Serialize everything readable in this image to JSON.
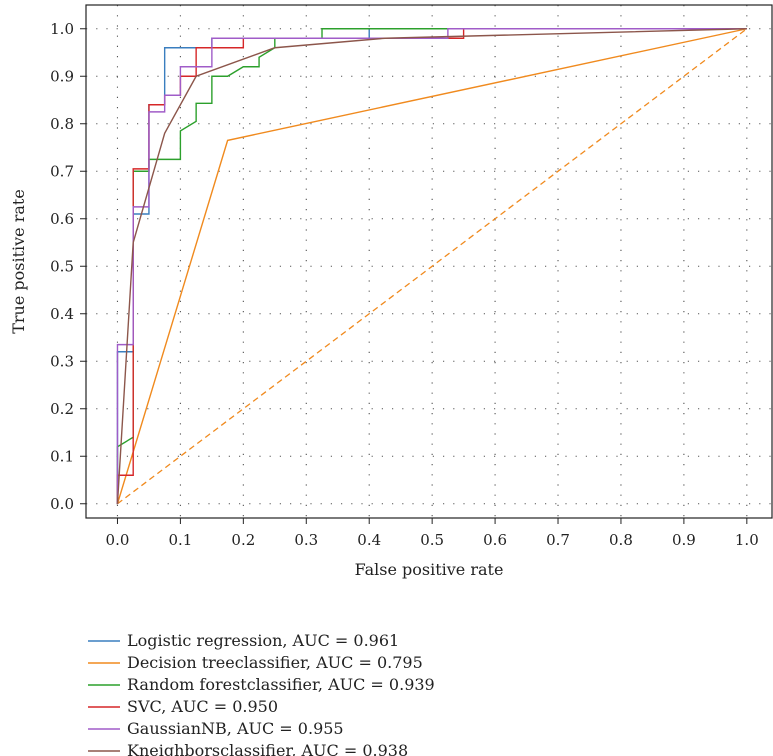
{
  "chart_data": {
    "type": "line",
    "xlabel": "False positive rate",
    "ylabel": "True positive rate",
    "xlim": [
      -0.05,
      1.04
    ],
    "ylim": [
      -0.03,
      1.05
    ],
    "xticks": [
      0.0,
      0.1,
      0.2,
      0.3,
      0.4,
      0.5,
      0.6,
      0.7,
      0.8,
      0.9,
      1.0
    ],
    "yticks": [
      0.0,
      0.1,
      0.2,
      0.3,
      0.4,
      0.5,
      0.6,
      0.7,
      0.8,
      0.9,
      1.0
    ],
    "grid": true,
    "legend_position": "bottom",
    "series": [
      {
        "name": "Logistic regression, AUC = 0.961",
        "color": "#3a7ebf",
        "x": [
          0,
          0,
          0.025,
          0.025,
          0.05,
          0.05,
          0.075,
          0.075,
          0.125,
          0.125,
          0.15,
          0.15,
          0.4,
          0.4,
          1.0
        ],
        "y": [
          0,
          0.32,
          0.32,
          0.61,
          0.61,
          0.84,
          0.84,
          0.96,
          0.96,
          0.96,
          0.96,
          0.98,
          0.98,
          1.0,
          1.0
        ]
      },
      {
        "name": "Decision treeclassifier, AUC = 0.795",
        "color": "#f08a1e",
        "x": [
          0,
          0.175,
          1.0
        ],
        "y": [
          0,
          0.765,
          1.0
        ]
      },
      {
        "name": "Random forestclassifier, AUC = 0.939",
        "color": "#2ca02c",
        "x": [
          0,
          0,
          0.025,
          0.025,
          0.05,
          0.05,
          0.1,
          0.1,
          0.125,
          0.125,
          0.15,
          0.15,
          0.175,
          0.175,
          0.2,
          0.2,
          0.225,
          0.225,
          0.25,
          0.25,
          0.325,
          0.325,
          1.0
        ],
        "y": [
          0,
          0.12,
          0.14,
          0.7,
          0.7,
          0.725,
          0.725,
          0.785,
          0.805,
          0.843,
          0.843,
          0.9,
          0.9,
          0.9,
          0.92,
          0.92,
          0.92,
          0.94,
          0.96,
          0.98,
          0.98,
          1.0,
          1.0
        ]
      },
      {
        "name": "SVC, AUC = 0.950",
        "color": "#d62728",
        "x": [
          0,
          0,
          0.025,
          0.025,
          0.05,
          0.05,
          0.075,
          0.075,
          0.1,
          0.1,
          0.125,
          0.125,
          0.2,
          0.2,
          0.55,
          0.55,
          1.0
        ],
        "y": [
          0,
          0.06,
          0.06,
          0.705,
          0.705,
          0.84,
          0.84,
          0.86,
          0.86,
          0.9,
          0.9,
          0.96,
          0.96,
          0.98,
          0.98,
          1.0,
          1.0
        ]
      },
      {
        "name": "GaussianNB, AUC = 0.955",
        "color": "#a05cc8",
        "x": [
          0,
          0,
          0.025,
          0.025,
          0.05,
          0.05,
          0.075,
          0.075,
          0.1,
          0.1,
          0.15,
          0.15,
          0.525,
          0.525,
          1.0
        ],
        "y": [
          0,
          0.335,
          0.335,
          0.625,
          0.625,
          0.825,
          0.825,
          0.86,
          0.86,
          0.92,
          0.92,
          0.98,
          0.98,
          1.0,
          1.0
        ]
      },
      {
        "name": "Kneighborsclassifier, AUC = 0.938",
        "color": "#8c564b",
        "x": [
          0,
          0.025,
          0.075,
          0.125,
          0.25,
          0.425,
          1.0
        ],
        "y": [
          0,
          0.55,
          0.78,
          0.9,
          0.96,
          0.98,
          1.0
        ]
      }
    ],
    "reference_line": {
      "x": [
        0,
        1.0
      ],
      "y": [
        0,
        1.0
      ],
      "color": "#f08a1e",
      "style": "dashed"
    }
  }
}
